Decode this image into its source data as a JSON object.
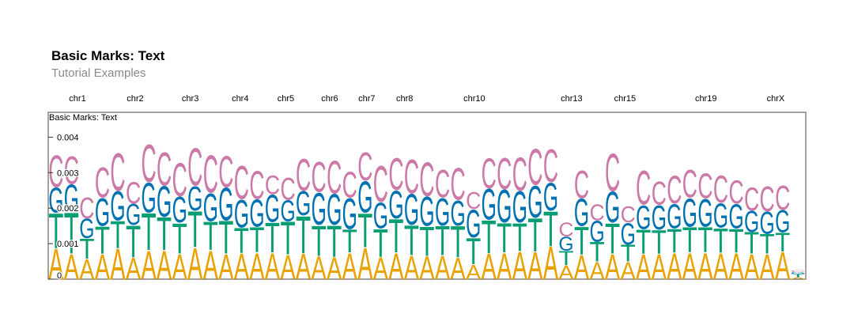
{
  "header": {
    "title": "Basic Marks: Text",
    "subtitle": "Tutorial Examples"
  },
  "chart_data": {
    "type": "sequence-logo",
    "title": "Basic Marks: Text",
    "ylim": [
      0,
      0.0047
    ],
    "yticks": [
      0,
      0.001,
      0.002,
      0.003,
      0.004
    ],
    "ytick_labels": [
      "0",
      "0.001",
      "0.002",
      "0.003",
      "0.004"
    ],
    "xlim": [
      0,
      88
    ],
    "chromosomes": [
      {
        "name": "chr1",
        "x": 3.4
      },
      {
        "name": "chr2",
        "x": 10.1
      },
      {
        "name": "chr3",
        "x": 16.5
      },
      {
        "name": "chr4",
        "x": 22.3
      },
      {
        "name": "chr5",
        "x": 27.6
      },
      {
        "name": "chr6",
        "x": 32.7
      },
      {
        "name": "chr7",
        "x": 37.0
      },
      {
        "name": "chr8",
        "x": 41.4
      },
      {
        "name": "chr10",
        "x": 49.5
      },
      {
        "name": "chr13",
        "x": 60.8
      },
      {
        "name": "chr15",
        "x": 67.0
      },
      {
        "name": "chr19",
        "x": 76.4
      },
      {
        "name": "chrX",
        "x": 84.5
      }
    ],
    "bases": [
      "A",
      "T",
      "G",
      "C"
    ],
    "colors": {
      "A": "#E8A202",
      "T": "#089E73",
      "G": "#0072B2",
      "C": "#CC79A7"
    },
    "values": [
      {
        "A": 0.00088,
        "T": 0.001,
        "G": 0.00072,
        "C": 0.00092
      },
      {
        "A": 0.00072,
        "T": 0.00118,
        "G": 0.00078,
        "C": 0.0008
      },
      {
        "A": 0.00058,
        "T": 0.00058,
        "G": 0.00056,
        "C": 0.0006
      },
      {
        "A": 0.00072,
        "T": 0.00078,
        "G": 0.0008,
        "C": 0.00088
      },
      {
        "A": 0.00088,
        "T": 0.00078,
        "G": 0.00084,
        "C": 0.00108
      },
      {
        "A": 0.00062,
        "T": 0.00092,
        "G": 0.0006,
        "C": 0.00062
      },
      {
        "A": 0.00082,
        "T": 0.00106,
        "G": 0.00086,
        "C": 0.00108
      },
      {
        "A": 0.00082,
        "T": 0.00094,
        "G": 0.00088,
        "C": 0.00096
      },
      {
        "A": 0.00072,
        "T": 0.00088,
        "G": 0.00074,
        "C": 0.00096
      },
      {
        "A": 0.0009,
        "T": 0.00104,
        "G": 0.0007,
        "C": 0.00108
      },
      {
        "A": 0.00082,
        "T": 0.00082,
        "G": 0.0008,
        "C": 0.00108
      },
      {
        "A": 0.00072,
        "T": 0.00094,
        "G": 0.00094,
        "C": 0.0009
      },
      {
        "A": 0.00074,
        "T": 0.00072,
        "G": 0.0008,
        "C": 0.00096
      },
      {
        "A": 0.00076,
        "T": 0.00072,
        "G": 0.00078,
        "C": 0.00082
      },
      {
        "A": 0.00076,
        "T": 0.00086,
        "G": 0.00078,
        "C": 0.00054
      },
      {
        "A": 0.0007,
        "T": 0.00094,
        "G": 0.0006,
        "C": 0.00064
      },
      {
        "A": 0.00074,
        "T": 0.00106,
        "G": 0.0007,
        "C": 0.00092
      },
      {
        "A": 0.00066,
        "T": 0.00088,
        "G": 0.00092,
        "C": 0.00088
      },
      {
        "A": 0.00064,
        "T": 0.0009,
        "G": 0.00088,
        "C": 0.00094
      },
      {
        "A": 0.00076,
        "T": 0.00066,
        "G": 0.00088,
        "C": 0.00074
      },
      {
        "A": 0.0009,
        "T": 0.00098,
        "G": 0.0009,
        "C": 0.00082
      },
      {
        "A": 0.00064,
        "T": 0.0008,
        "G": 0.00074,
        "C": 0.00104
      },
      {
        "A": 0.00076,
        "T": 0.00096,
        "G": 0.0008,
        "C": 0.00092
      },
      {
        "A": 0.00068,
        "T": 0.00086,
        "G": 0.00088,
        "C": 0.00098
      },
      {
        "A": 0.00066,
        "T": 0.00084,
        "G": 0.00084,
        "C": 0.00098
      },
      {
        "A": 0.00068,
        "T": 0.00084,
        "G": 0.00078,
        "C": 0.0008
      },
      {
        "A": 0.00062,
        "T": 0.0009,
        "G": 0.00072,
        "C": 0.00092
      },
      {
        "A": 0.00042,
        "T": 0.00076,
        "G": 0.0008,
        "C": 0.00048
      },
      {
        "A": 0.00074,
        "T": 0.00094,
        "G": 0.00088,
        "C": 0.00088
      },
      {
        "A": 0.00076,
        "T": 0.00084,
        "G": 0.00094,
        "C": 0.0009
      },
      {
        "A": 0.0008,
        "T": 0.0008,
        "G": 0.0009,
        "C": 0.00096
      },
      {
        "A": 0.00078,
        "T": 0.00096,
        "G": 0.00092,
        "C": 0.00104
      },
      {
        "A": 0.00094,
        "T": 0.001,
        "G": 0.0008,
        "C": 0.00094
      },
      {
        "A": 0.0004,
        "T": 0.0004,
        "G": 0.0004,
        "C": 0.0004
      },
      {
        "A": 0.0007,
        "T": 0.0008,
        "G": 0.00078,
        "C": 0.0008
      },
      {
        "A": 0.0005,
        "T": 0.00056,
        "G": 0.0006,
        "C": 0.00046
      },
      {
        "A": 0.00072,
        "T": 0.00088,
        "G": 0.00088,
        "C": 0.00108
      },
      {
        "A": 0.0005,
        "T": 0.00048,
        "G": 0.00062,
        "C": 0.00046
      },
      {
        "A": 0.00072,
        "T": 0.0007,
        "G": 0.00068,
        "C": 0.00098
      },
      {
        "A": 0.00072,
        "T": 0.00068,
        "G": 0.0007,
        "C": 0.00066
      },
      {
        "A": 0.00076,
        "T": 0.00068,
        "G": 0.0007,
        "C": 0.0008
      },
      {
        "A": 0.00076,
        "T": 0.00072,
        "G": 0.00082,
        "C": 0.0008
      },
      {
        "A": 0.00076,
        "T": 0.00072,
        "G": 0.0008,
        "C": 0.00072
      },
      {
        "A": 0.00076,
        "T": 0.0007,
        "G": 0.0007,
        "C": 0.00078
      },
      {
        "A": 0.00076,
        "T": 0.00068,
        "G": 0.0007,
        "C": 0.00066
      },
      {
        "A": 0.00072,
        "T": 0.00062,
        "G": 0.0006,
        "C": 0.00066
      },
      {
        "A": 0.00072,
        "T": 0.00056,
        "G": 0.00064,
        "C": 0.00072
      },
      {
        "A": 0.00078,
        "T": 0.00054,
        "G": 0.00064,
        "C": 0.0007
      },
      {
        "A": 6e-05,
        "T": 8e-05,
        "G": 6e-05,
        "C": 6e-05
      }
    ]
  }
}
